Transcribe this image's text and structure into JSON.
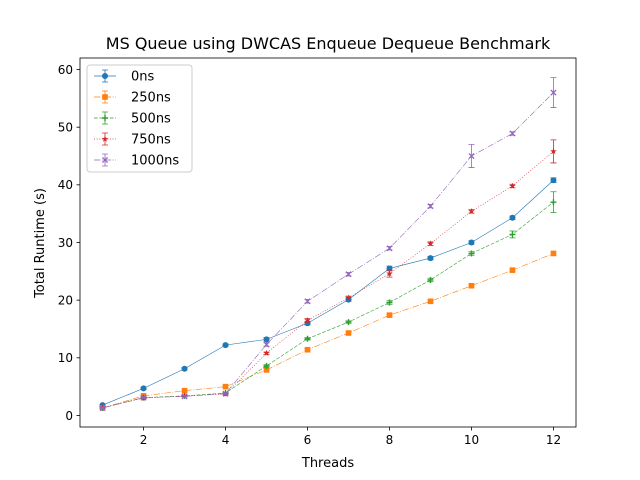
{
  "chart_data": {
    "type": "line",
    "title": "MS Queue using DWCAS Enqueue Dequeue Benchmark",
    "xlabel": "Threads",
    "ylabel": "Total Runtime (s)",
    "xlim": [
      0.45,
      12.55
    ],
    "ylim": [
      -2.0,
      62.0
    ],
    "xticks": [
      2,
      4,
      6,
      8,
      10,
      12
    ],
    "yticks": [
      0,
      10,
      20,
      30,
      40,
      50,
      60
    ],
    "grid": false,
    "legend_position": "top-left",
    "x": [
      1,
      2,
      3,
      4,
      5,
      6,
      7,
      8,
      9,
      10,
      11,
      12
    ],
    "series": [
      {
        "name": "0ns",
        "color": "#1f77b4",
        "marker": "circle",
        "dash": "solid",
        "values": [
          1.8,
          4.7,
          8.1,
          12.2,
          13.2,
          16.0,
          20.1,
          25.5,
          27.3,
          30.0,
          34.3,
          40.8
        ],
        "errors": [
          0.1,
          0.2,
          0.2,
          0.2,
          0.3,
          0.3,
          0.3,
          0.4,
          0.3,
          0.3,
          0.3,
          0.4
        ]
      },
      {
        "name": "250ns",
        "color": "#ff7f0e",
        "marker": "square",
        "dash": "dashdot",
        "values": [
          1.3,
          3.4,
          4.3,
          5.0,
          7.9,
          11.4,
          14.3,
          17.4,
          19.8,
          22.5,
          25.2,
          28.1
        ],
        "errors": [
          0.1,
          0.1,
          0.1,
          0.2,
          0.2,
          0.2,
          0.2,
          0.2,
          0.2,
          0.2,
          0.2,
          0.3
        ]
      },
      {
        "name": "500ns",
        "color": "#2ca02c",
        "marker": "plus",
        "dash": "dashed",
        "values": [
          1.3,
          3.1,
          3.4,
          3.9,
          8.6,
          13.3,
          16.2,
          19.6,
          23.5,
          28.1,
          31.4,
          37.0
        ],
        "errors": [
          0.1,
          0.1,
          0.1,
          0.1,
          0.2,
          0.2,
          0.2,
          0.3,
          0.3,
          0.3,
          0.6,
          1.8
        ]
      },
      {
        "name": "750ns",
        "color": "#d62728",
        "marker": "star",
        "dash": "dotted",
        "values": [
          1.4,
          3.0,
          3.4,
          3.7,
          10.8,
          16.5,
          20.4,
          24.6,
          29.8,
          35.4,
          39.8,
          45.8
        ],
        "errors": [
          0.1,
          0.1,
          0.1,
          0.1,
          0.2,
          0.3,
          0.3,
          0.6,
          0.3,
          0.3,
          0.3,
          2.0
        ]
      },
      {
        "name": "1000ns",
        "color": "#9467bd",
        "marker": "x",
        "dash": "dashdot",
        "values": [
          1.3,
          3.1,
          3.3,
          3.8,
          12.3,
          19.8,
          24.5,
          29.0,
          36.3,
          45.0,
          48.9,
          56.0
        ],
        "errors": [
          0.1,
          0.1,
          0.1,
          0.1,
          0.3,
          0.3,
          0.3,
          0.3,
          0.3,
          2.0,
          0.3,
          2.6
        ]
      }
    ]
  }
}
